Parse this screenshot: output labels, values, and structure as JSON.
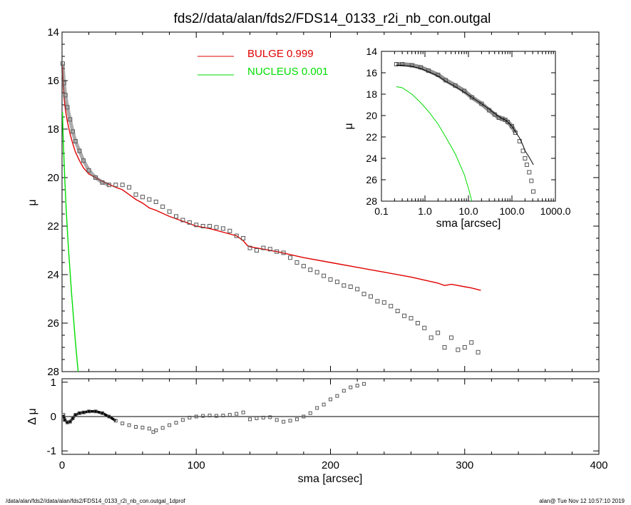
{
  "title": "fds2//data/alan/fds2/FDS14_0133_r2i_nb_con.outgal",
  "footer": {
    "left": "/data/alan/fds2//data/alan/fds2/FDS14_0133_r2i_nb_con.outgal_1dprof",
    "right": "alan@  Tue Nov 12 10:57:10 2019"
  },
  "colors": {
    "bulge": "#e00000",
    "nucleus": "#00dd00",
    "data": "#555555",
    "axes": "#000000"
  },
  "chart_data": [
    {
      "type": "line",
      "panel": "main",
      "xlabel": "sma [arcsec]",
      "ylabel": "μ",
      "xlim": [
        0,
        400
      ],
      "ylim": [
        28,
        14
      ],
      "yticks": [
        "14",
        "16",
        "18",
        "20",
        "22",
        "24",
        "26",
        "28"
      ],
      "legend": [
        {
          "label": "BULGE  0.999",
          "color": "#e00000"
        },
        {
          "label": "NUCLEUS  0.001",
          "color": "#00dd00"
        }
      ],
      "series": [
        {
          "name": "BULGE",
          "color": "#e00000",
          "x": [
            0.3,
            0.8,
            1.5,
            2.5,
            4,
            6,
            8,
            10,
            13,
            16,
            20,
            25,
            30,
            35,
            40,
            45,
            50,
            55,
            60,
            65,
            70,
            80,
            90,
            100,
            110,
            120,
            130,
            135,
            138,
            140,
            150,
            160,
            180,
            200,
            220,
            240,
            260,
            280,
            285,
            290,
            300,
            305,
            312
          ],
          "y": [
            15.4,
            16.1,
            16.7,
            17.2,
            17.7,
            18.2,
            18.6,
            18.95,
            19.3,
            19.6,
            19.85,
            20.0,
            20.15,
            20.28,
            20.4,
            20.5,
            20.7,
            20.9,
            21.05,
            21.25,
            21.35,
            21.6,
            21.8,
            22.0,
            22.1,
            22.25,
            22.4,
            22.6,
            22.8,
            22.85,
            22.95,
            23.05,
            23.3,
            23.5,
            23.7,
            23.9,
            24.1,
            24.35,
            24.45,
            24.4,
            24.5,
            24.55,
            24.65
          ]
        },
        {
          "name": "NUCLEUS",
          "color": "#00dd00",
          "x": [
            0.3,
            1,
            2,
            3,
            4,
            5,
            6,
            7,
            8,
            9,
            10,
            11,
            12
          ],
          "y": [
            17.3,
            18.6,
            20.0,
            21.2,
            22.2,
            23.1,
            23.9,
            24.7,
            25.4,
            26.1,
            26.8,
            27.4,
            28.0
          ]
        },
        {
          "name": "data",
          "color": "#555555",
          "x": [
            0.5,
            1.5,
            2.5,
            4,
            6,
            8,
            10,
            13,
            16,
            20,
            25,
            30,
            35,
            40,
            45,
            50,
            55,
            60,
            65,
            70,
            75,
            80,
            85,
            90,
            95,
            100,
            105,
            110,
            115,
            120,
            125,
            130,
            135,
            140,
            145,
            150,
            155,
            160,
            165,
            170,
            175,
            180,
            185,
            190,
            195,
            200,
            205,
            210,
            215,
            220,
            225,
            230,
            235,
            240,
            245,
            250,
            255,
            260,
            265,
            270,
            275,
            280,
            285,
            290,
            295,
            300,
            305,
            310
          ],
          "y": [
            15.3,
            16.1,
            16.6,
            17.1,
            17.6,
            18.1,
            18.5,
            18.9,
            19.3,
            19.7,
            20.0,
            20.2,
            20.3,
            20.3,
            20.3,
            20.4,
            20.7,
            20.8,
            20.9,
            21.0,
            21.2,
            21.4,
            21.6,
            21.75,
            21.85,
            21.95,
            22.0,
            22.0,
            22.05,
            22.1,
            22.2,
            22.4,
            22.5,
            22.9,
            23.0,
            22.9,
            22.95,
            23.05,
            23.1,
            23.3,
            23.5,
            23.65,
            23.8,
            23.9,
            24.05,
            24.2,
            24.3,
            24.45,
            24.5,
            24.6,
            24.8,
            24.9,
            25.1,
            25.15,
            25.3,
            25.5,
            25.7,
            25.8,
            26.0,
            26.2,
            26.6,
            26.4,
            27.0,
            26.6,
            27.1,
            27.0,
            26.8,
            27.2
          ]
        }
      ]
    },
    {
      "type": "scatter",
      "panel": "residual",
      "xlabel": "sma [arcsec]",
      "ylabel": "Δ μ",
      "xlim": [
        0,
        400
      ],
      "ylim": [
        -1.1,
        1.1
      ],
      "xticks": [
        "0",
        "100",
        "200",
        "300",
        "400"
      ],
      "yticks": [
        "-1",
        "0",
        "1"
      ],
      "series": [
        {
          "name": "residual",
          "x": [
            1,
            2,
            4,
            6,
            8,
            10,
            13,
            16,
            20,
            25,
            30,
            35,
            40,
            45,
            50,
            55,
            60,
            65,
            68,
            70,
            75,
            80,
            85,
            90,
            95,
            100,
            105,
            110,
            115,
            120,
            125,
            130,
            135,
            140,
            145,
            150,
            155,
            160,
            165,
            170,
            175,
            180,
            185,
            190,
            195,
            200,
            205,
            210,
            215,
            220,
            225
          ],
          "y": [
            0.05,
            -0.1,
            -0.17,
            -0.15,
            -0.05,
            0.05,
            0.1,
            0.12,
            0.15,
            0.15,
            0.1,
            0.0,
            -0.12,
            -0.2,
            -0.25,
            -0.3,
            -0.32,
            -0.35,
            -0.45,
            -0.4,
            -0.33,
            -0.25,
            -0.18,
            -0.1,
            -0.03,
            0.0,
            0.02,
            0.03,
            0.02,
            0.03,
            0.05,
            0.08,
            0.12,
            -0.08,
            -0.05,
            -0.03,
            -0.02,
            -0.1,
            -0.15,
            -0.12,
            -0.08,
            0.0,
            0.1,
            0.25,
            0.35,
            0.5,
            0.6,
            0.75,
            0.85,
            0.9,
            0.95
          ]
        }
      ]
    },
    {
      "type": "line",
      "panel": "inset",
      "xlabel": "sma [arcsec]",
      "ylabel": "μ",
      "xscale": "log",
      "xlim": [
        0.1,
        1000
      ],
      "ylim": [
        28,
        14
      ],
      "xticks": [
        "0.1",
        "1.0",
        "10.0",
        "100.0",
        "1000.0"
      ],
      "yticks": [
        "14",
        "16",
        "18",
        "20",
        "22",
        "24",
        "26",
        "28"
      ],
      "series": [
        {
          "name": "NUCLEUS",
          "color": "#00dd00",
          "x": [
            0.22,
            0.3,
            0.5,
            0.8,
            1.2,
            2,
            3,
            5,
            8,
            10,
            12
          ],
          "y": [
            17.3,
            17.4,
            18.0,
            18.8,
            19.6,
            20.8,
            22.0,
            23.6,
            25.5,
            26.8,
            28.0
          ]
        },
        {
          "name": "data",
          "color": "#555555",
          "x": [
            0.22,
            0.3,
            0.5,
            0.8,
            1.2,
            2,
            3,
            5,
            8,
            12,
            20,
            30,
            40,
            50,
            60,
            70,
            80,
            100,
            120,
            150,
            180,
            200,
            220,
            250,
            280,
            310
          ],
          "y": [
            15.2,
            15.2,
            15.3,
            15.5,
            15.8,
            16.2,
            16.7,
            17.2,
            17.7,
            18.3,
            18.9,
            19.5,
            19.9,
            20.2,
            20.3,
            20.4,
            20.6,
            21.0,
            21.6,
            22.4,
            23.3,
            24.0,
            24.6,
            25.3,
            26.1,
            27.1
          ]
        },
        {
          "name": "BULGE",
          "color": "#000000",
          "x": [
            0.22,
            0.3,
            0.5,
            0.8,
            1.2,
            2,
            3,
            5,
            8,
            12,
            20,
            30,
            40,
            50,
            60,
            70,
            80,
            100,
            120,
            150,
            180,
            200,
            250,
            312
          ],
          "y": [
            15.3,
            15.3,
            15.4,
            15.6,
            15.9,
            16.3,
            16.8,
            17.3,
            17.8,
            18.3,
            18.9,
            19.4,
            19.8,
            20.1,
            20.3,
            20.4,
            20.6,
            21.0,
            21.5,
            22.1,
            22.8,
            23.3,
            23.9,
            24.6
          ]
        }
      ]
    }
  ]
}
